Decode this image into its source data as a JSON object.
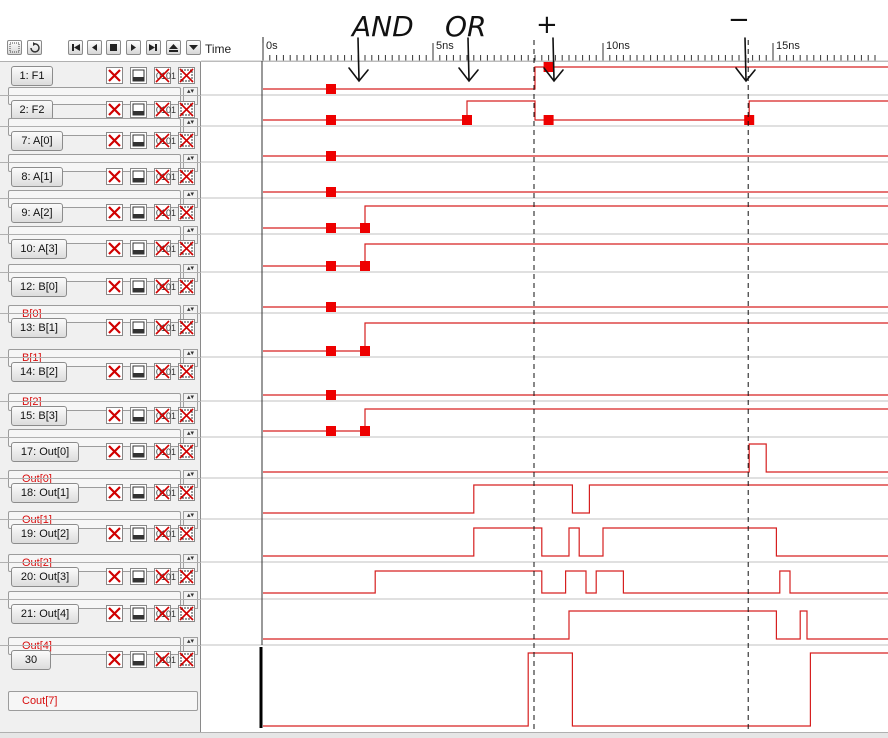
{
  "annotations": {
    "marks": [
      "AND",
      "OR",
      "+",
      "−"
    ],
    "arrow_count": 4
  },
  "toolbar": {
    "time_label": "Time",
    "buttons": [
      "select-icon",
      "refresh-icon",
      "go-start-icon",
      "step-back-icon",
      "stop-icon",
      "play-icon",
      "go-end-icon",
      "scroll-up-icon",
      "scroll-down-icon"
    ]
  },
  "ruler": {
    "labels": [
      "0s",
      "5ns",
      "10ns",
      "15ns"
    ],
    "label_times_ns": [
      0,
      5,
      10,
      15
    ],
    "unit": "ns"
  },
  "cursors": {
    "times_ns": [
      8.0,
      14.3
    ]
  },
  "colors": {
    "waveform": "#d62020",
    "marker": "#ee0000",
    "sublabel_text": "#d81010",
    "panel_bg": "#f0f0f0"
  },
  "signals": [
    {
      "name": "1: F1",
      "sublabel": "",
      "transitions_ns": [
        8.0
      ],
      "initial": 0,
      "markers_ns": [
        2.0,
        8.4
      ]
    },
    {
      "name": "2: F2",
      "sublabel": "",
      "transitions_ns": [
        6.0,
        8.0,
        14.3
      ],
      "initial": 0,
      "markers_ns": [
        2.0,
        6.0,
        8.4,
        14.3
      ]
    },
    {
      "name": "7: A[0]",
      "sublabel": "",
      "transitions_ns": [],
      "initial": 0,
      "markers_ns": [
        2.0
      ]
    },
    {
      "name": "8: A[1]",
      "sublabel": "",
      "transitions_ns": [],
      "initial": 0,
      "markers_ns": [
        2.0
      ]
    },
    {
      "name": "9: A[2]",
      "sublabel": "",
      "transitions_ns": [
        3.0
      ],
      "initial": 0,
      "markers_ns": [
        2.0,
        3.0
      ]
    },
    {
      "name": "10: A[3]",
      "sublabel": "",
      "transitions_ns": [
        3.0
      ],
      "initial": 0,
      "markers_ns": [
        2.0,
        3.0
      ]
    },
    {
      "name": "12: B[0]",
      "sublabel": "B[0]",
      "transitions_ns": [],
      "initial": 0,
      "markers_ns": [
        2.0
      ]
    },
    {
      "name": "13: B[1]",
      "sublabel": "B[1]",
      "transitions_ns": [
        3.0
      ],
      "initial": 0,
      "markers_ns": [
        2.0,
        3.0
      ]
    },
    {
      "name": "14: B[2]",
      "sublabel": "B[2]",
      "transitions_ns": [],
      "initial": 0,
      "markers_ns": [
        2.0
      ]
    },
    {
      "name": "15: B[3]",
      "sublabel": "",
      "transitions_ns": [
        3.0
      ],
      "initial": 0,
      "markers_ns": [
        2.0,
        3.0
      ]
    },
    {
      "name": "17: Out[0]",
      "sublabel": "Out[0]",
      "transitions_ns": [
        14.3,
        14.8
      ],
      "initial": 0,
      "markers_ns": []
    },
    {
      "name": "18: Out[1]",
      "sublabel": "Out[1]",
      "transitions_ns": [
        6.2,
        9.1,
        9.6
      ],
      "initial": 0,
      "markers_ns": []
    },
    {
      "name": "19: Out[2]",
      "sublabel": "Out[2]",
      "transitions_ns": [
        6.2,
        8.2,
        9.0,
        9.3,
        10.0,
        15.1
      ],
      "initial": 0,
      "markers_ns": []
    },
    {
      "name": "20: Out[3]",
      "sublabel": "",
      "transitions_ns": [
        3.3,
        8.2,
        8.9,
        9.5,
        9.8,
        10.6,
        15.2,
        15.5
      ],
      "initial": 0,
      "markers_ns": []
    },
    {
      "name": "21: Out[4]",
      "sublabel": "Out[4]",
      "transitions_ns": [
        9.0,
        15.1,
        15.8,
        16.0
      ],
      "initial": 0,
      "markers_ns": []
    },
    {
      "name": "30",
      "sublabel": "Cout[7]",
      "transitions_ns": [
        7.8,
        9.1,
        16.1
      ],
      "initial": 0,
      "markers_ns": []
    }
  ]
}
